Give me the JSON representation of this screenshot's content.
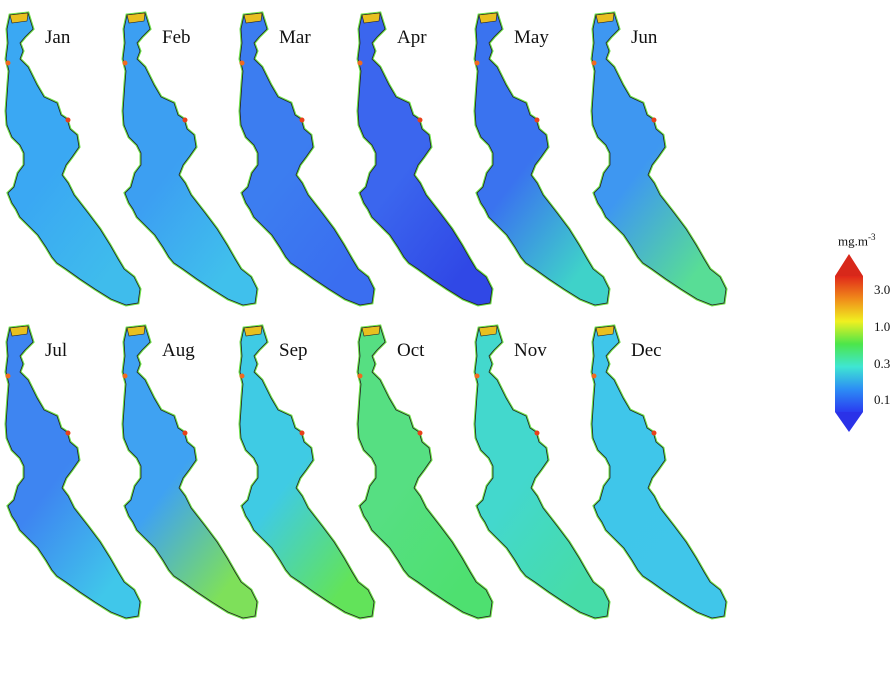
{
  "colorbar": {
    "unit_base": "mg.m",
    "unit_exp": "-3",
    "ticks": [
      "3.0",
      "1.0",
      "0.3",
      "0.1"
    ],
    "stops": [
      "#2a3cf0",
      "#2c8df5",
      "#3fe6d2",
      "#4ce64a",
      "#f0f020",
      "#f08a1a",
      "#e0281a"
    ]
  },
  "months": [
    {
      "label": "Jan",
      "base": "#3aa8f3",
      "south": "#3fbcec"
    },
    {
      "label": "Feb",
      "base": "#3c9ff2",
      "south": "#40c0ec"
    },
    {
      "label": "Mar",
      "base": "#3c7df0",
      "south": "#3a6ef0"
    },
    {
      "label": "Apr",
      "base": "#3b66ee",
      "south": "#3048e6"
    },
    {
      "label": "May",
      "base": "#3a73ef",
      "south": "#3fd2c9"
    },
    {
      "label": "Jun",
      "base": "#3e97f1",
      "south": "#58dd96"
    },
    {
      "label": "Jul",
      "base": "#3e85f1",
      "south": "#40c7ea"
    },
    {
      "label": "Aug",
      "base": "#3fa2f2",
      "south": "#7ee05a"
    },
    {
      "label": "Sep",
      "base": "#3fcbe4",
      "south": "#62e35a"
    },
    {
      "label": "Oct",
      "base": "#56df82",
      "south": "#4ee070"
    },
    {
      "label": "Nov",
      "base": "#43d8cd",
      "south": "#46dca8"
    },
    {
      "label": "Dec",
      "base": "#3fc6ea",
      "south": "#40c6ea"
    }
  ]
}
